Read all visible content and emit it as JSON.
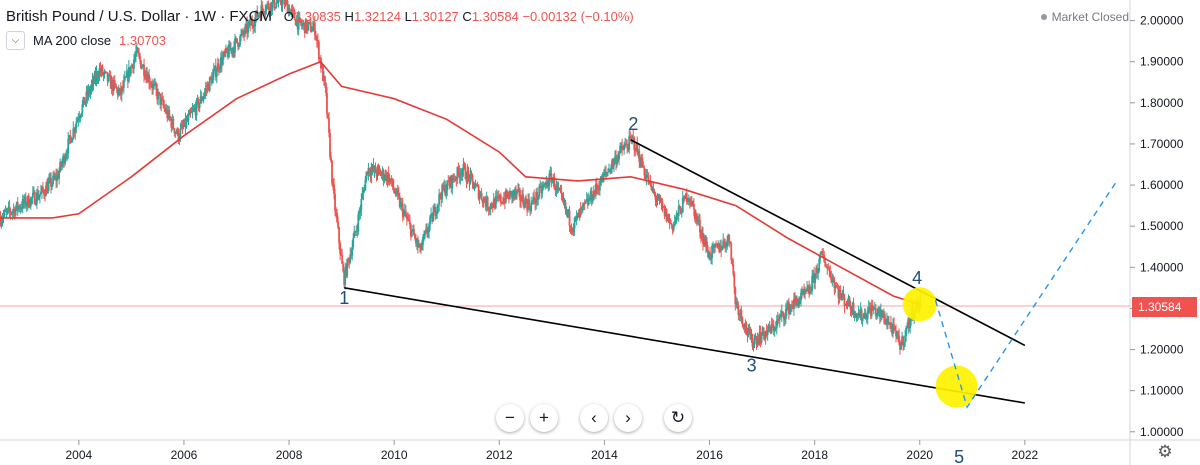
{
  "header": {
    "symbol": "British Pound / U.S. Dollar · 1W · FXCM",
    "open_label": "O",
    "open": "1.30835",
    "high_label": "H",
    "high": "1.32124",
    "low_label": "L",
    "low": "1.30127",
    "close_label": "C",
    "close": "1.30584",
    "change": "−0.00132 (−0.10%)"
  },
  "indicator": {
    "label": "MA 200 close",
    "value": "1.30703"
  },
  "market_status": "Market Closed",
  "price_tag": "1.30584",
  "toolbar": {
    "zoom_out": "−",
    "zoom_in": "+",
    "back": "‹",
    "forward": "›",
    "reset": "↻"
  },
  "settings_icon": "⚙",
  "colors": {
    "up": "#26a69a",
    "down": "#ef5350",
    "ma": "#e53935",
    "highlight": "#fff200",
    "projection": "#2196f3"
  },
  "chart_data": {
    "type": "candlestick",
    "title": "British Pound / U.S. Dollar 1W FXCM",
    "x_range": [
      2002.5,
      2024.0
    ],
    "y_range": [
      0.98,
      2.05
    ],
    "x_ticks": [
      "2004",
      "2006",
      "2008",
      "2010",
      "2012",
      "2014",
      "2016",
      "2018",
      "2020",
      "2022"
    ],
    "y_ticks": [
      "2.00000",
      "1.90000",
      "1.80000",
      "1.70000",
      "1.60000",
      "1.50000",
      "1.40000",
      "1.30000",
      "1.20000",
      "1.10000",
      "1.00000"
    ],
    "price_path": [
      [
        2002.5,
        1.52
      ],
      [
        2003.3,
        1.58
      ],
      [
        2003.6,
        1.62
      ],
      [
        2004.0,
        1.77
      ],
      [
        2004.4,
        1.88
      ],
      [
        2004.8,
        1.82
      ],
      [
        2005.1,
        1.92
      ],
      [
        2005.5,
        1.82
      ],
      [
        2005.9,
        1.72
      ],
      [
        2006.3,
        1.8
      ],
      [
        2006.7,
        1.9
      ],
      [
        2007.1,
        1.96
      ],
      [
        2007.5,
        2.03
      ],
      [
        2007.9,
        2.05
      ],
      [
        2008.2,
        1.99
      ],
      [
        2008.5,
        1.98
      ],
      [
        2008.7,
        1.83
      ],
      [
        2008.85,
        1.58
      ],
      [
        2009.05,
        1.37
      ],
      [
        2009.3,
        1.5
      ],
      [
        2009.5,
        1.64
      ],
      [
        2009.9,
        1.62
      ],
      [
        2010.3,
        1.5
      ],
      [
        2010.5,
        1.44
      ],
      [
        2010.9,
        1.58
      ],
      [
        2011.3,
        1.64
      ],
      [
        2011.8,
        1.55
      ],
      [
        2012.3,
        1.58
      ],
      [
        2012.6,
        1.55
      ],
      [
        2013.0,
        1.62
      ],
      [
        2013.4,
        1.5
      ],
      [
        2013.9,
        1.6
      ],
      [
        2014.3,
        1.68
      ],
      [
        2014.55,
        1.71
      ],
      [
        2014.9,
        1.59
      ],
      [
        2015.3,
        1.5
      ],
      [
        2015.6,
        1.58
      ],
      [
        2016.0,
        1.43
      ],
      [
        2016.4,
        1.47
      ],
      [
        2016.5,
        1.32
      ],
      [
        2016.8,
        1.22
      ],
      [
        2017.2,
        1.25
      ],
      [
        2017.5,
        1.3
      ],
      [
        2017.9,
        1.34
      ],
      [
        2018.15,
        1.43
      ],
      [
        2018.5,
        1.33
      ],
      [
        2018.9,
        1.28
      ],
      [
        2019.1,
        1.3
      ],
      [
        2019.4,
        1.27
      ],
      [
        2019.65,
        1.21
      ],
      [
        2019.9,
        1.3
      ],
      [
        2020.0,
        1.31
      ]
    ],
    "ma_200": [
      [
        2002.5,
        1.52
      ],
      [
        2003.5,
        1.52
      ],
      [
        2004.0,
        1.53
      ],
      [
        2005.0,
        1.62
      ],
      [
        2006.0,
        1.72
      ],
      [
        2007.0,
        1.81
      ],
      [
        2008.0,
        1.87
      ],
      [
        2008.6,
        1.9
      ],
      [
        2009.0,
        1.84
      ],
      [
        2010.0,
        1.81
      ],
      [
        2011.0,
        1.76
      ],
      [
        2012.0,
        1.68
      ],
      [
        2012.5,
        1.62
      ],
      [
        2013.5,
        1.61
      ],
      [
        2014.5,
        1.62
      ],
      [
        2015.5,
        1.59
      ],
      [
        2016.5,
        1.55
      ],
      [
        2017.5,
        1.47
      ],
      [
        2018.5,
        1.4
      ],
      [
        2019.5,
        1.33
      ],
      [
        2020.0,
        1.31
      ]
    ],
    "trendlines": [
      {
        "name": "upper",
        "points": [
          [
            2014.5,
            1.71
          ],
          [
            2022.0,
            1.21
          ]
        ]
      },
      {
        "name": "lower",
        "points": [
          [
            2009.05,
            1.35
          ],
          [
            2022.0,
            1.07
          ]
        ]
      }
    ],
    "projection": [
      [
        2020.3,
        1.32
      ],
      [
        2020.9,
        1.06
      ],
      [
        2023.75,
        1.61
      ]
    ],
    "horizontal_line": 1.30584,
    "wave_labels": [
      {
        "label": "1",
        "x": 2009.05,
        "y": 1.35
      },
      {
        "label": "2",
        "x": 2014.55,
        "y": 1.71
      },
      {
        "label": "3",
        "x": 2016.8,
        "y": 1.2
      },
      {
        "label": "4",
        "x": 2019.95,
        "y": 1.33
      },
      {
        "label": "5",
        "x": 2020.75,
        "y": 1.05
      }
    ],
    "highlights": [
      {
        "x": 2020.0,
        "y": 1.31
      },
      {
        "x": 2020.7,
        "y": 1.11
      }
    ]
  }
}
